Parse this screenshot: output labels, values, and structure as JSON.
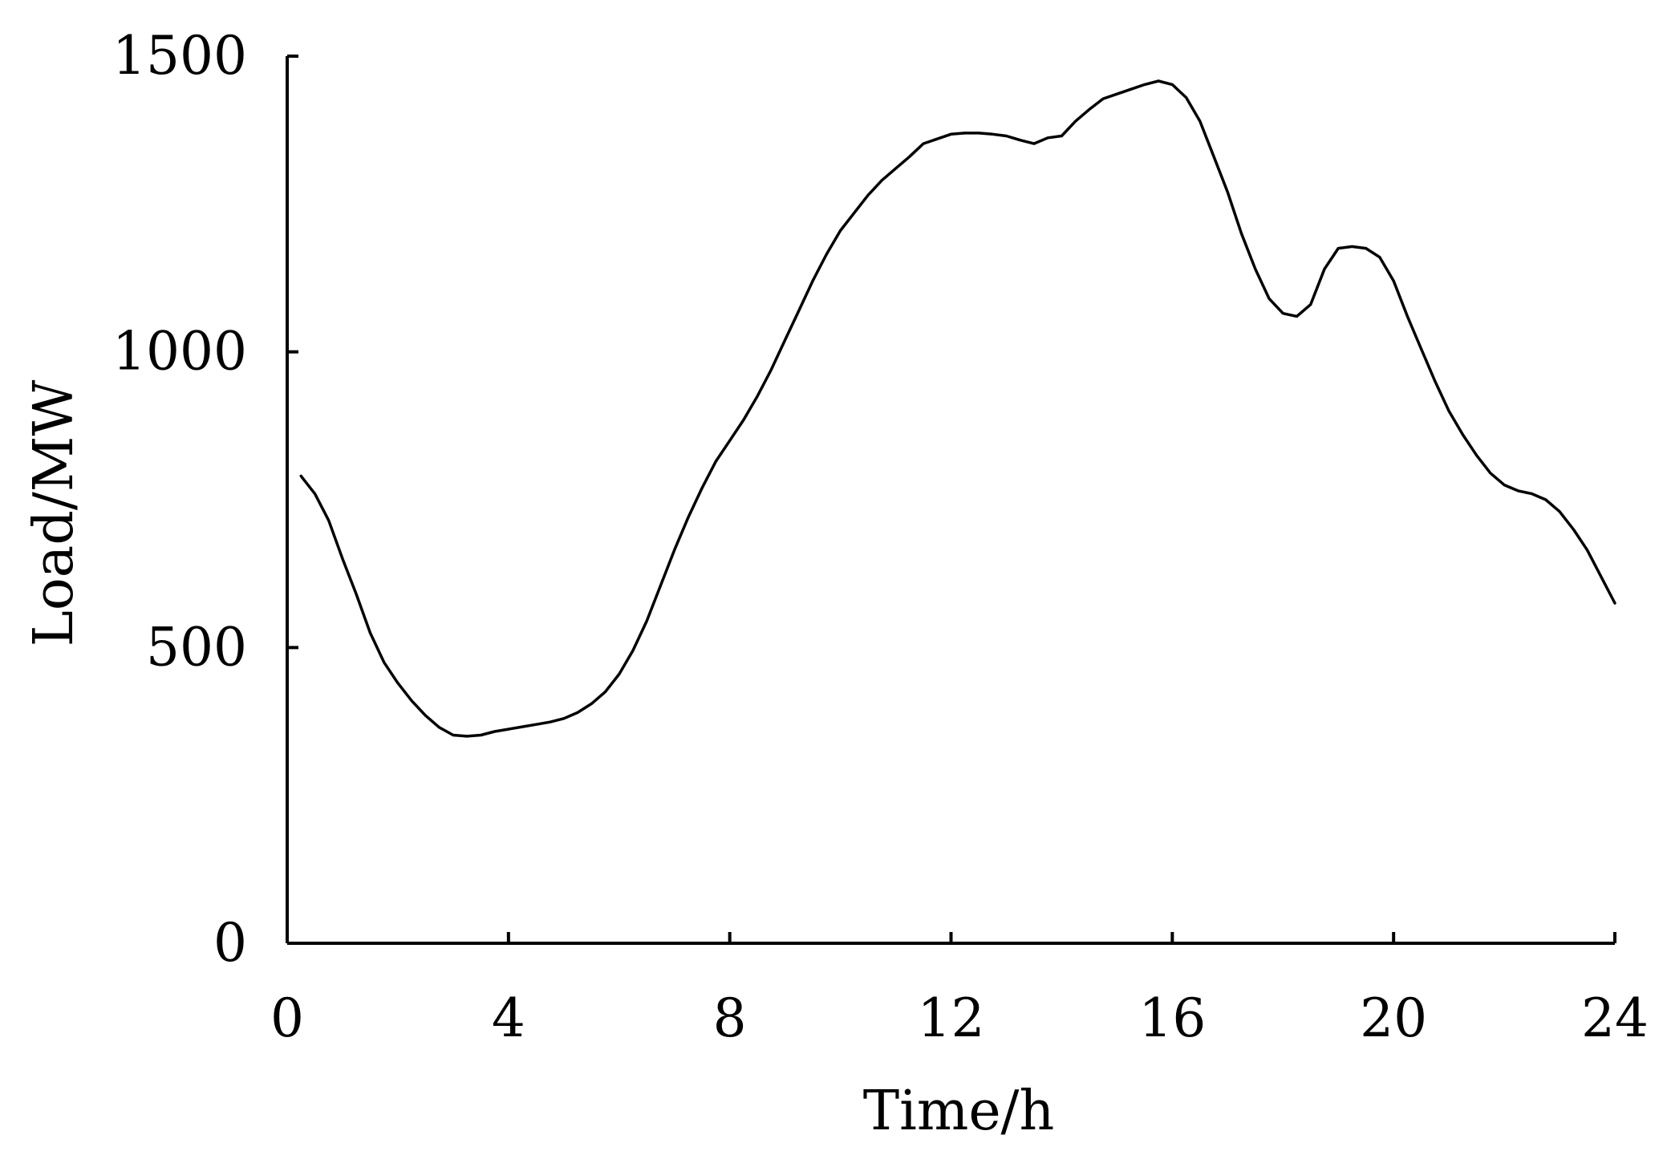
{
  "chart_data": {
    "type": "line",
    "title": "",
    "xlabel": "Time/h",
    "ylabel": "Load/MW",
    "xlim": [
      0,
      24
    ],
    "ylim": [
      0,
      1500
    ],
    "xticks": [
      0,
      4,
      8,
      12,
      16,
      20,
      24
    ],
    "yticks": [
      0,
      500,
      1000,
      1500
    ],
    "grid": false,
    "legend": "none",
    "series": [
      {
        "color": "#000000",
        "x": [
          0.25,
          0.5,
          0.75,
          1.0,
          1.25,
          1.5,
          1.75,
          2.0,
          2.25,
          2.5,
          2.75,
          3.0,
          3.25,
          3.5,
          3.75,
          4.0,
          4.25,
          4.5,
          4.75,
          5.0,
          5.25,
          5.5,
          5.75,
          6.0,
          6.25,
          6.5,
          6.75,
          7.0,
          7.25,
          7.5,
          7.75,
          8.0,
          8.25,
          8.5,
          8.75,
          9.0,
          9.25,
          9.5,
          9.75,
          10.0,
          10.25,
          10.5,
          10.75,
          11.0,
          11.25,
          11.5,
          11.75,
          12.0,
          12.25,
          12.5,
          12.75,
          13.0,
          13.25,
          13.5,
          13.75,
          14.0,
          14.25,
          14.5,
          14.75,
          15.0,
          15.25,
          15.5,
          15.75,
          16.0,
          16.25,
          16.5,
          16.75,
          17.0,
          17.25,
          17.5,
          17.75,
          18.0,
          18.25,
          18.5,
          18.75,
          19.0,
          19.25,
          19.5,
          19.75,
          20.0,
          20.25,
          20.5,
          20.75,
          21.0,
          21.25,
          21.5,
          21.75,
          22.0,
          22.25,
          22.5,
          22.75,
          23.0,
          23.25,
          23.5,
          23.75,
          24.0
        ],
        "values": [
          790,
          760,
          715,
          650,
          590,
          525,
          475,
          440,
          410,
          385,
          365,
          352,
          350,
          352,
          358,
          362,
          366,
          370,
          374,
          380,
          390,
          405,
          425,
          455,
          495,
          545,
          605,
          665,
          720,
          770,
          815,
          850,
          885,
          925,
          970,
          1020,
          1070,
          1120,
          1165,
          1205,
          1235,
          1265,
          1290,
          1310,
          1330,
          1352,
          1360,
          1368,
          1370,
          1370,
          1368,
          1365,
          1358,
          1352,
          1362,
          1365,
          1390,
          1410,
          1428,
          1436,
          1444,
          1452,
          1458,
          1452,
          1430,
          1390,
          1330,
          1270,
          1200,
          1140,
          1090,
          1065,
          1060,
          1080,
          1140,
          1175,
          1178,
          1175,
          1160,
          1120,
          1060,
          1005,
          950,
          900,
          860,
          825,
          795,
          775,
          765,
          760,
          750,
          730,
          700,
          665,
          620,
          575
        ]
      }
    ]
  }
}
